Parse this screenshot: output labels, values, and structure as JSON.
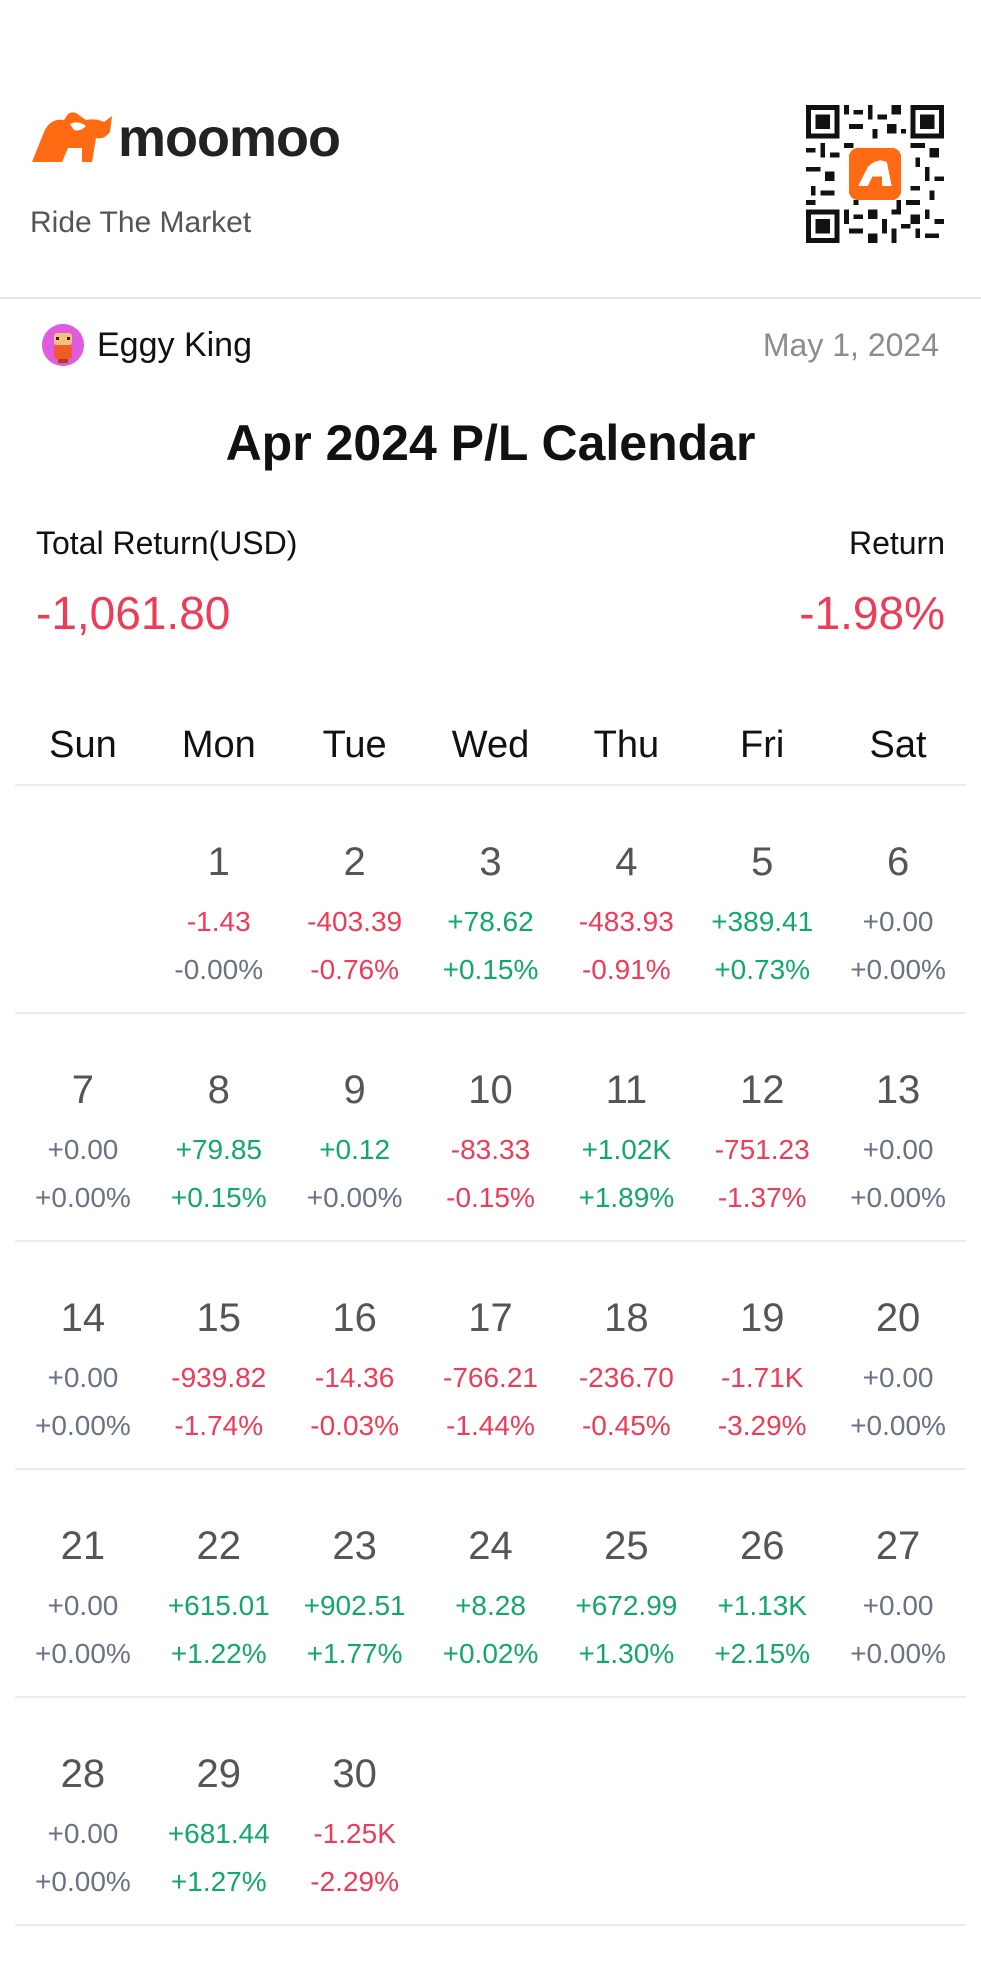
{
  "brand": {
    "name": "moomoo",
    "tagline": "Ride The Market",
    "accent": "#ff6a13"
  },
  "user": {
    "name": "Eggy King",
    "date": "May 1, 2024"
  },
  "title": "Apr 2024 P/L Calendar",
  "summary": {
    "total_label": "Total Return(USD)",
    "total_value": "-1,061.80",
    "return_label": "Return",
    "return_value": "-1.98%"
  },
  "colors": {
    "up": "#13a86a",
    "down": "#ee3b57",
    "flat": "#6a7384"
  },
  "weekdays": [
    "Sun",
    "Mon",
    "Tue",
    "Wed",
    "Thu",
    "Fri",
    "Sat"
  ],
  "weeks": [
    [
      null,
      {
        "day": "1",
        "pl": "-1.43",
        "pct": "-0.00%",
        "trend": "down-flat"
      },
      {
        "day": "2",
        "pl": "-403.39",
        "pct": "-0.76%",
        "trend": "down"
      },
      {
        "day": "3",
        "pl": "+78.62",
        "pct": "+0.15%",
        "trend": "up"
      },
      {
        "day": "4",
        "pl": "-483.93",
        "pct": "-0.91%",
        "trend": "down"
      },
      {
        "day": "5",
        "pl": "+389.41",
        "pct": "+0.73%",
        "trend": "up"
      },
      {
        "day": "6",
        "pl": "+0.00",
        "pct": "+0.00%",
        "trend": "flat"
      }
    ],
    [
      {
        "day": "7",
        "pl": "+0.00",
        "pct": "+0.00%",
        "trend": "flat"
      },
      {
        "day": "8",
        "pl": "+79.85",
        "pct": "+0.15%",
        "trend": "up"
      },
      {
        "day": "9",
        "pl": "+0.12",
        "pct": "+0.00%",
        "trend": "up-flat"
      },
      {
        "day": "10",
        "pl": "-83.33",
        "pct": "-0.15%",
        "trend": "down"
      },
      {
        "day": "11",
        "pl": "+1.02K",
        "pct": "+1.89%",
        "trend": "up"
      },
      {
        "day": "12",
        "pl": "-751.23",
        "pct": "-1.37%",
        "trend": "down"
      },
      {
        "day": "13",
        "pl": "+0.00",
        "pct": "+0.00%",
        "trend": "flat"
      }
    ],
    [
      {
        "day": "14",
        "pl": "+0.00",
        "pct": "+0.00%",
        "trend": "flat"
      },
      {
        "day": "15",
        "pl": "-939.82",
        "pct": "-1.74%",
        "trend": "down"
      },
      {
        "day": "16",
        "pl": "-14.36",
        "pct": "-0.03%",
        "trend": "down"
      },
      {
        "day": "17",
        "pl": "-766.21",
        "pct": "-1.44%",
        "trend": "down"
      },
      {
        "day": "18",
        "pl": "-236.70",
        "pct": "-0.45%",
        "trend": "down"
      },
      {
        "day": "19",
        "pl": "-1.71K",
        "pct": "-3.29%",
        "trend": "down"
      },
      {
        "day": "20",
        "pl": "+0.00",
        "pct": "+0.00%",
        "trend": "flat"
      }
    ],
    [
      {
        "day": "21",
        "pl": "+0.00",
        "pct": "+0.00%",
        "trend": "flat"
      },
      {
        "day": "22",
        "pl": "+615.01",
        "pct": "+1.22%",
        "trend": "up"
      },
      {
        "day": "23",
        "pl": "+902.51",
        "pct": "+1.77%",
        "trend": "up"
      },
      {
        "day": "24",
        "pl": "+8.28",
        "pct": "+0.02%",
        "trend": "up"
      },
      {
        "day": "25",
        "pl": "+672.99",
        "pct": "+1.30%",
        "trend": "up"
      },
      {
        "day": "26",
        "pl": "+1.13K",
        "pct": "+2.15%",
        "trend": "up"
      },
      {
        "day": "27",
        "pl": "+0.00",
        "pct": "+0.00%",
        "trend": "flat"
      }
    ],
    [
      {
        "day": "28",
        "pl": "+0.00",
        "pct": "+0.00%",
        "trend": "flat"
      },
      {
        "day": "29",
        "pl": "+681.44",
        "pct": "+1.27%",
        "trend": "up"
      },
      {
        "day": "30",
        "pl": "-1.25K",
        "pct": "-2.29%",
        "trend": "down"
      },
      null,
      null,
      null,
      null
    ]
  ]
}
